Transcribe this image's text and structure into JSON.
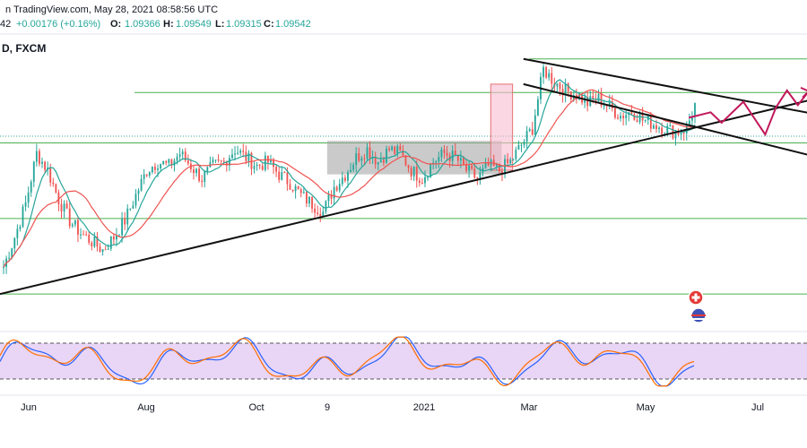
{
  "header": {
    "line1": "n TradingView.com, May 28, 2021 08:58:56 UTC",
    "line2_prefix": "42",
    "change": "+0.00176 (+0.16%)",
    "o_label": "O:",
    "o_value": "1.09366",
    "h_label": "H:",
    "h_value": "1.09549",
    "l_label": "L:",
    "l_value": "1.09315",
    "c_label": "C:",
    "c_value": "1.09542",
    "symbol": "D, FXCM"
  },
  "colors": {
    "up": "#26a69a",
    "down": "#ef5350",
    "ma_fast": "#26a69a",
    "ma_slow": "#ef5350",
    "hline": "#4caf50",
    "trend": "#111111",
    "zigzag": "#c2185b",
    "rsi_band": "#e1bee7",
    "stoch_k": "#2962ff",
    "stoch_d": "#ff6d00",
    "box": "#9e9e9e"
  },
  "chart_data": {
    "type": "candlestick",
    "title": "D, FXCM",
    "x_ticks": [
      "Jun",
      "Aug",
      "Oct",
      "9",
      "2021",
      "Mar",
      "May",
      "Jul"
    ],
    "price_range": [
      1.04,
      1.11
    ],
    "oscillator_range": [
      0,
      100
    ],
    "oscillator_bands": [
      20,
      80
    ],
    "close_series": [
      1.055,
      1.062,
      1.07,
      1.082,
      1.078,
      1.071,
      1.066,
      1.063,
      1.061,
      1.059,
      1.062,
      1.066,
      1.072,
      1.078,
      1.08,
      1.079,
      1.082,
      1.079,
      1.076,
      1.079,
      1.08,
      1.083,
      1.081,
      1.079,
      1.08,
      1.077,
      1.075,
      1.072,
      1.07,
      1.068,
      1.074,
      1.077,
      1.081,
      1.083,
      1.08,
      1.083,
      1.082,
      1.078,
      1.076,
      1.08,
      1.082,
      1.081,
      1.078,
      1.076,
      1.079,
      1.078,
      1.08,
      1.084,
      1.088,
      1.102,
      1.099,
      1.097,
      1.096,
      1.094,
      1.095,
      1.093,
      1.091,
      1.092,
      1.09,
      1.089,
      1.088,
      1.087,
      1.088,
      1.0954
    ],
    "horizontal_levels": [
      1.1045,
      1.0965,
      1.0845,
      1.0665,
      1.0485
    ],
    "trendlines": [
      {
        "name": "rising-support",
        "from": [
          0,
          1.0485
        ],
        "to": [
          72,
          1.0933
        ]
      },
      {
        "name": "descending-top",
        "from": [
          48,
          1.1045
        ],
        "to": [
          72,
          1.0927
        ]
      },
      {
        "name": "descending-bottom",
        "from": [
          48,
          1.0985
        ],
        "to": [
          72,
          1.083
        ]
      }
    ],
    "consolidation_box": {
      "x_from": 30,
      "x_to": 46,
      "y_low": 1.077,
      "y_high": 1.085
    },
    "breakout_box": {
      "x_from": 45,
      "x_to": 47,
      "y_low": 1.078,
      "y_high": 1.0985
    },
    "projection_zigzag": [
      [
        63,
        1.0905
      ],
      [
        65,
        1.0918
      ],
      [
        66,
        1.0893
      ],
      [
        68,
        1.0943
      ],
      [
        70,
        1.0865
      ],
      [
        71,
        1.093
      ],
      [
        72,
        1.097
      ],
      [
        73,
        1.0935
      ],
      [
        74,
        1.0968
      ]
    ]
  }
}
